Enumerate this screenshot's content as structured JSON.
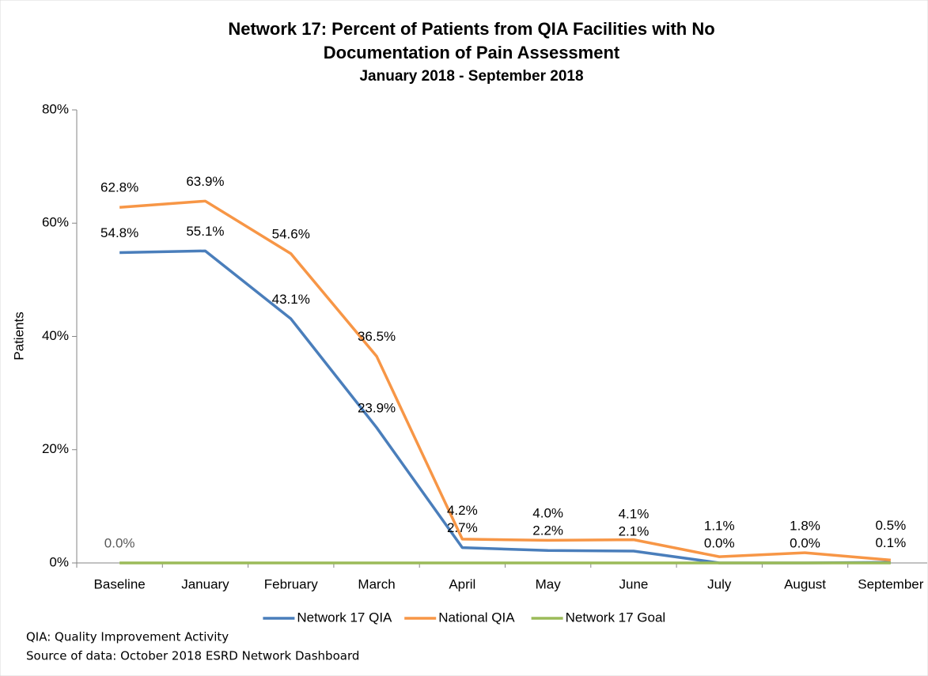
{
  "chart_data": {
    "type": "line",
    "title": [
      "Network 17: Percent of Patients from QIA Facilities with No",
      "Documentation of Pain Assessment"
    ],
    "subtitle": "January 2018 - September 2018",
    "y_label": "Patients",
    "categories": [
      "Baseline",
      "January",
      "February",
      "March",
      "April",
      "May",
      "June",
      "July",
      "August",
      "September"
    ],
    "series": [
      {
        "name": "Network 17 QIA",
        "color": "#4a7ebb",
        "values": [
          54.8,
          55.1,
          43.1,
          23.9,
          2.7,
          2.2,
          2.1,
          0.0,
          0.0,
          0.1
        ],
        "value_labels": [
          "54.8%",
          "55.1%",
          "43.1%",
          "23.9%",
          "2.7%",
          "2.2%",
          "2.1%",
          "0.0%",
          "0.0%",
          "0.1%"
        ]
      },
      {
        "name": "National QIA",
        "color": "#f79646",
        "values": [
          62.8,
          63.9,
          54.6,
          36.5,
          4.2,
          4.0,
          4.1,
          1.1,
          1.8,
          0.5
        ],
        "value_labels": [
          "62.8%",
          "63.9%",
          "54.6%",
          "36.5%",
          "4.2%",
          "4.0%",
          "4.1%",
          "1.1%",
          "1.8%",
          "0.5%"
        ]
      },
      {
        "name": "Network 17 Goal",
        "color": "#9bbb59",
        "values": [
          0,
          0,
          0,
          0,
          0,
          0,
          0,
          0,
          0,
          0
        ],
        "value_labels": [
          "0.0%",
          null,
          null,
          null,
          null,
          null,
          null,
          null,
          null,
          null
        ]
      }
    ],
    "ylim": [
      0,
      80
    ],
    "yticks": [
      {
        "value": 0,
        "label": "0%"
      },
      {
        "value": 20,
        "label": "20%"
      },
      {
        "value": 40,
        "label": "40%"
      },
      {
        "value": 60,
        "label": "60%"
      },
      {
        "value": 80,
        "label": "80%"
      }
    ],
    "grid": false,
    "legend": "bottom",
    "notes": [
      "QIA:  Quality Improvement Activity",
      "Source of data:  October 2018 ESRD Network Dashboard"
    ]
  }
}
